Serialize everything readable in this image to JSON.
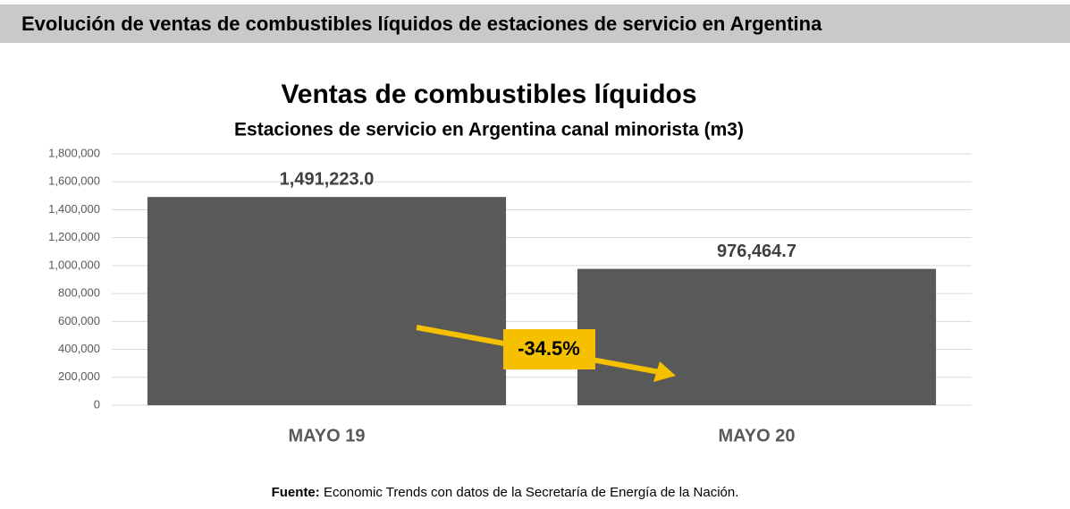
{
  "header": {
    "title": "Evolución de ventas de combustibles líquidos de estaciones de servicio en Argentina"
  },
  "chart_data": {
    "type": "bar",
    "title": "Ventas de combustibles líquidos",
    "subtitle": "Estaciones de servicio en Argentina canal minorista  (m3)",
    "categories": [
      "MAYO 19",
      "MAYO 20"
    ],
    "values": [
      1491223.0,
      976464.7
    ],
    "value_labels": [
      "1,491,223.0",
      "976,464.7"
    ],
    "color": "#595959",
    "ylim": [
      0,
      1800000
    ],
    "yticks": [
      0,
      {
        "value": 200000,
        "label": "200,000"
      },
      {
        "value": 400000,
        "label": "400,000"
      },
      {
        "value": 600000,
        "label": "600,000"
      },
      {
        "value": 800000,
        "label": "800,000"
      },
      {
        "value": 1000000,
        "label": "1,000,000"
      },
      {
        "value": 1200000,
        "label": "1,200,000"
      },
      {
        "value": 1400000,
        "label": "1,400,000"
      },
      {
        "value": 1600000,
        "label": "1,600,000"
      },
      {
        "value": 1800000,
        "label": "1,800,000"
      }
    ],
    "grid": true,
    "annotation": "-34.5%"
  },
  "source": {
    "label": "Fuente:",
    "text": "Economic Trends con datos de la Secretaría de Energía de la Nación."
  }
}
